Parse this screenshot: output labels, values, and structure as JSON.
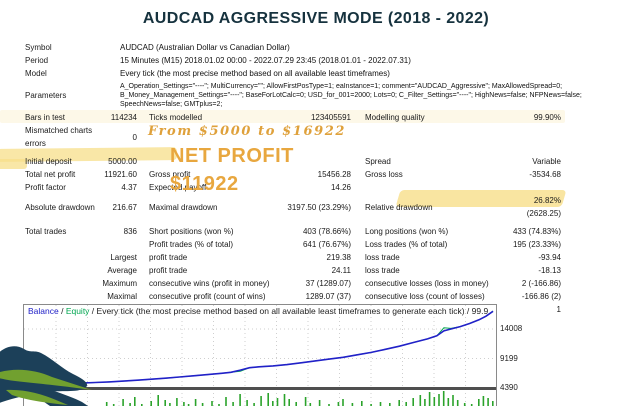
{
  "title": "AUDCAD AGGRESSIVE MODE (2018 - 2022)",
  "overlays": {
    "journey": "From $5000 to $16922",
    "net_profit_line1": "NET PROFIT",
    "net_profit_line2": "$11922"
  },
  "report": {
    "info_rows": [
      {
        "label": "Symbol",
        "value": "AUDCAD (Australian Dollar vs Canadian Dollar)"
      },
      {
        "label": "Period",
        "value": "15 Minutes (M15) 2018.01.02 00:00 - 2022.07.29 23:45 (2018.01.01 - 2022.07.31)"
      },
      {
        "label": "Model",
        "value": "Every tick (the most precise method based on all available least timeframes)"
      },
      {
        "label": "Parameters",
        "value": "A_Operation_Settings=\"----\"; MultiCurrency=\"\"; AllowFirstPosType=1; eaInstance=1; comment=\"AUDCAD_Aggressive\"; MaxAllowedSpread=0; B_Money_Management_Settings=\"----\"; BaseForLotCalc=0; USD_for_001=2000; Lots=0; C_Filter_Settings=\"----\"; HighNews=false; NFPNews=false; SpeechNews=false; GMTplus=2;"
      }
    ],
    "stat_rows": [
      {
        "l1": "Bars in test",
        "v1": "114234",
        "l2": "Ticks modelled",
        "v2": "123405591",
        "l3": "Modelling quality",
        "v3": "99.90%"
      },
      {
        "l1": "Mismatched charts errors",
        "v1": "0",
        "l2": "",
        "v2": "",
        "l3": "",
        "v3": ""
      },
      {
        "l1": "Initial deposit",
        "v1": "5000.00",
        "l2": "",
        "v2": "",
        "l3": "Spread",
        "v3": "Variable"
      },
      {
        "l1": "Total net profit",
        "v1": "11921.60",
        "l2": "Gross profit",
        "v2": "15456.28",
        "l3": "Gross loss",
        "v3": "-3534.68"
      },
      {
        "l1": "Profit factor",
        "v1": "4.37",
        "l2": "Expected payoff",
        "v2": "14.26",
        "l3": "",
        "v3": ""
      },
      {
        "l1": "Absolute drawdown",
        "v1": "216.67",
        "l2": "Maximal drawdown",
        "v2": "3197.50 (23.29%)",
        "l3": "Relative drawdown",
        "v3": "26.82% (2628.25)"
      },
      {
        "l1": "Total trades",
        "v1": "836",
        "l2": "Short positions (won %)",
        "v2": "403 (78.66%)",
        "l3": "Long positions (won %)",
        "v3": "433 (74.83%)"
      },
      {
        "l1": "",
        "v1": "",
        "l2": "Profit trades (% of total)",
        "v2": "641 (76.67%)",
        "l3": "Loss trades (% of total)",
        "v3": "195 (23.33%)"
      },
      {
        "l1": "",
        "v1": "Largest",
        "l2": "profit trade",
        "v2": "219.38",
        "l3": "loss trade",
        "v3": "-93.94"
      },
      {
        "l1": "",
        "v1": "Average",
        "l2": "profit trade",
        "v2": "24.11",
        "l3": "loss trade",
        "v3": "-18.13"
      },
      {
        "l1": "",
        "v1": "Maximum",
        "l2": "consecutive wins (profit in money)",
        "v2": "37 (1289.07)",
        "l3": "consecutive losses (loss in money)",
        "v3": "2 (-166.86)"
      },
      {
        "l1": "",
        "v1": "Maximal",
        "l2": "consecutive profit (count of wins)",
        "v2": "1289.07 (37)",
        "l3": "consecutive loss (count of losses)",
        "v3": "-166.86 (2)"
      },
      {
        "l1": "",
        "v1": "Average",
        "l2": "consecutive wins",
        "v2": "4",
        "l3": "consecutive losses",
        "v3": "1"
      }
    ]
  },
  "chart_data": {
    "type": "line",
    "title": "",
    "legend_parts": {
      "balance": "Balance",
      "sep1": " / ",
      "equity": "Equity",
      "rest": " / Every tick (the most precise method based on all available least timeframes to generate each tick) / 99.9"
    },
    "y_ticks": [
      14008,
      9199,
      4390
    ],
    "ylim": [
      4390,
      17500
    ],
    "grid": true,
    "legend_position": "top-left-inline",
    "balance_series": [
      [
        0,
        5000
      ],
      [
        0.03,
        5040
      ],
      [
        0.06,
        5080
      ],
      [
        0.09,
        5130
      ],
      [
        0.12,
        5190
      ],
      [
        0.15,
        5280
      ],
      [
        0.18,
        5390
      ],
      [
        0.21,
        5520
      ],
      [
        0.24,
        5660
      ],
      [
        0.27,
        5820
      ],
      [
        0.3,
        5990
      ],
      [
        0.33,
        6180
      ],
      [
        0.36,
        6380
      ],
      [
        0.39,
        6580
      ],
      [
        0.42,
        6780
      ],
      [
        0.44,
        6950
      ],
      [
        0.46,
        7300
      ],
      [
        0.48,
        7700
      ],
      [
        0.5,
        7850
      ],
      [
        0.53,
        8000
      ],
      [
        0.56,
        8200
      ],
      [
        0.59,
        8500
      ],
      [
        0.62,
        8800
      ],
      [
        0.65,
        9100
      ],
      [
        0.68,
        9400
      ],
      [
        0.71,
        9800
      ],
      [
        0.74,
        10200
      ],
      [
        0.77,
        10700
      ],
      [
        0.8,
        11200
      ],
      [
        0.83,
        11800
      ],
      [
        0.86,
        12400
      ],
      [
        0.88,
        12900
      ],
      [
        0.895,
        13700
      ],
      [
        0.91,
        14000
      ],
      [
        0.93,
        14400
      ],
      [
        0.95,
        14900
      ],
      [
        0.97,
        15500
      ],
      [
        0.985,
        16100
      ],
      [
        1.0,
        16900
      ]
    ],
    "equity_series": [
      [
        0,
        5000
      ],
      [
        0.03,
        5040
      ],
      [
        0.06,
        5060
      ],
      [
        0.09,
        4990
      ],
      [
        0.12,
        5190
      ],
      [
        0.15,
        5280
      ],
      [
        0.18,
        5390
      ],
      [
        0.21,
        5520
      ],
      [
        0.24,
        5660
      ],
      [
        0.27,
        5820
      ],
      [
        0.3,
        5990
      ],
      [
        0.33,
        6180
      ],
      [
        0.36,
        6380
      ],
      [
        0.39,
        6580
      ],
      [
        0.42,
        6780
      ],
      [
        0.44,
        6950
      ],
      [
        0.46,
        7120
      ],
      [
        0.48,
        7700
      ],
      [
        0.5,
        7850
      ],
      [
        0.53,
        8000
      ],
      [
        0.56,
        8200
      ],
      [
        0.59,
        8500
      ],
      [
        0.62,
        8800
      ],
      [
        0.65,
        9100
      ],
      [
        0.68,
        9400
      ],
      [
        0.71,
        9800
      ],
      [
        0.74,
        10200
      ],
      [
        0.77,
        10700
      ],
      [
        0.8,
        11200
      ],
      [
        0.83,
        11800
      ],
      [
        0.86,
        12400
      ],
      [
        0.88,
        12900
      ],
      [
        0.895,
        14200
      ],
      [
        0.91,
        14100
      ],
      [
        0.93,
        14400
      ],
      [
        0.95,
        14900
      ],
      [
        0.97,
        15500
      ],
      [
        0.985,
        16100
      ],
      [
        1.0,
        16950
      ]
    ],
    "volume_bars": [
      [
        0.175,
        5
      ],
      [
        0.19,
        3
      ],
      [
        0.21,
        8
      ],
      [
        0.225,
        4
      ],
      [
        0.235,
        10
      ],
      [
        0.25,
        3
      ],
      [
        0.27,
        6
      ],
      [
        0.285,
        12
      ],
      [
        0.3,
        7
      ],
      [
        0.31,
        4
      ],
      [
        0.325,
        9
      ],
      [
        0.34,
        5
      ],
      [
        0.35,
        3
      ],
      [
        0.365,
        8
      ],
      [
        0.38,
        4
      ],
      [
        0.4,
        6
      ],
      [
        0.415,
        3
      ],
      [
        0.43,
        10
      ],
      [
        0.445,
        5
      ],
      [
        0.46,
        13
      ],
      [
        0.475,
        7
      ],
      [
        0.49,
        4
      ],
      [
        0.505,
        11
      ],
      [
        0.52,
        14
      ],
      [
        0.53,
        6
      ],
      [
        0.54,
        9
      ],
      [
        0.555,
        13
      ],
      [
        0.565,
        8
      ],
      [
        0.58,
        5
      ],
      [
        0.6,
        10
      ],
      [
        0.61,
        4
      ],
      [
        0.63,
        7
      ],
      [
        0.65,
        3
      ],
      [
        0.67,
        5
      ],
      [
        0.68,
        8
      ],
      [
        0.7,
        4
      ],
      [
        0.72,
        6
      ],
      [
        0.74,
        3
      ],
      [
        0.76,
        5
      ],
      [
        0.78,
        4
      ],
      [
        0.8,
        7
      ],
      [
        0.815,
        5
      ],
      [
        0.83,
        9
      ],
      [
        0.845,
        12
      ],
      [
        0.855,
        8
      ],
      [
        0.865,
        15
      ],
      [
        0.875,
        10
      ],
      [
        0.885,
        13
      ],
      [
        0.895,
        16
      ],
      [
        0.905,
        9
      ],
      [
        0.915,
        12
      ],
      [
        0.925,
        7
      ],
      [
        0.94,
        4
      ],
      [
        0.955,
        3
      ],
      [
        0.97,
        8
      ],
      [
        0.98,
        11
      ],
      [
        0.99,
        9
      ],
      [
        1.0,
        6
      ]
    ]
  },
  "colors": {
    "title": "#16323e",
    "accent_orange": "#e8a73f",
    "highlight_yellow": "#f7df8a",
    "balance_line": "#2121c8",
    "equity_line": "#00a650",
    "volume_bar": "#2ba32b",
    "decor_navy": "#1c4059",
    "decor_green": "#71a02f"
  }
}
